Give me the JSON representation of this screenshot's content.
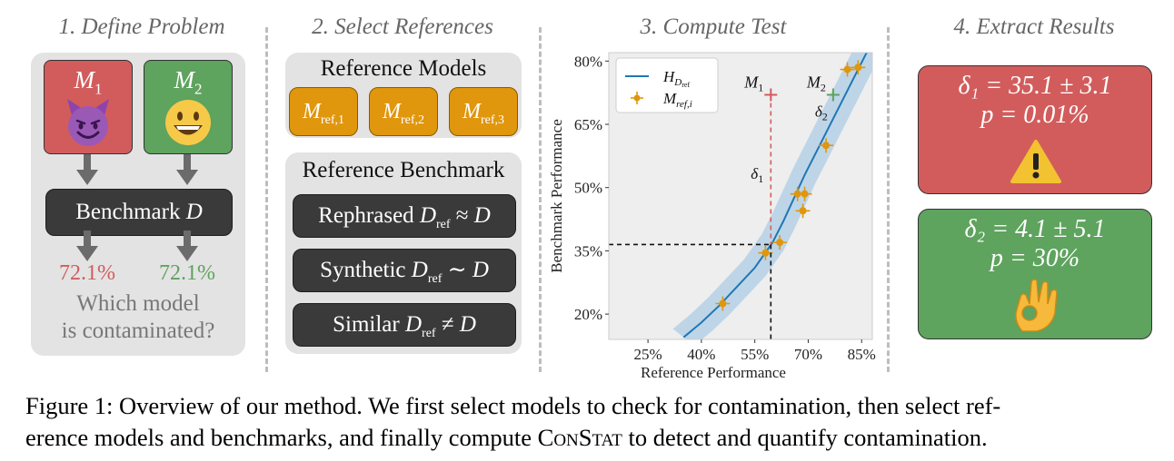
{
  "steps": {
    "step1_title": "1. Define Problem",
    "step2_title": "2. Select References",
    "step3_title": "3. Compute Test",
    "step4_title": "4. Extract Results"
  },
  "problem": {
    "model1_symbol": "M",
    "model1_index": "1",
    "model2_symbol": "M",
    "model2_index": "2",
    "benchmark_text": "Benchmark ",
    "benchmark_symbol": "D",
    "model1_score": "72.1%",
    "model2_score": "72.1%",
    "question_line1": "Which model",
    "question_line2": "is contaminated?",
    "colors": {
      "red": "#d25c5c",
      "green": "#5ea35e",
      "dark": "#3a3a3a"
    }
  },
  "references": {
    "models_title": "Reference Models",
    "ref_models": [
      {
        "symbol": "M",
        "sub": "ref,1"
      },
      {
        "symbol": "M",
        "sub": "ref,2"
      },
      {
        "symbol": "M",
        "sub": "ref,3"
      }
    ],
    "benchmark_title": "Reference Benchmark",
    "benchmarks": [
      {
        "word": "Rephrased",
        "sym": "D",
        "sub": "ref",
        "rel": "≈",
        "target": "D"
      },
      {
        "word": "Synthetic",
        "sym": "D",
        "sub": "ref",
        "rel": "∼",
        "target": "D"
      },
      {
        "word": "Similar",
        "sym": "D",
        "sub": "ref",
        "rel": "≠",
        "target": "D"
      }
    ],
    "orange": "#e0960d"
  },
  "chart_data": {
    "type": "scatter",
    "title": "3. Compute Test",
    "xlabel": "Reference Performance",
    "ylabel": "Benchmark Performance",
    "xlim": [
      14,
      88
    ],
    "ylim": [
      14,
      82
    ],
    "xticks": [
      "25%",
      "40%",
      "55%",
      "70%",
      "85%"
    ],
    "xtick_values": [
      25,
      40,
      55,
      70,
      85
    ],
    "yticks": [
      "80%",
      "65%",
      "50%",
      "35%",
      "20%"
    ],
    "ytick_values": [
      80,
      65,
      50,
      35,
      20
    ],
    "legend": {
      "line_label": "H",
      "line_sub": "D",
      "line_subsub": "ref",
      "points_label": "M",
      "points_sub": "ref,i"
    },
    "fit_curve": {
      "x": [
        35,
        40,
        45,
        50,
        55,
        60,
        63,
        66,
        69,
        72,
        75,
        78,
        81,
        84,
        87
      ],
      "y": [
        14.5,
        18,
        22,
        26.5,
        31,
        37,
        42,
        47.5,
        53,
        58,
        63,
        68,
        73,
        78,
        83
      ]
    },
    "reference_points": [
      {
        "x": 46,
        "y": 22.5
      },
      {
        "x": 58,
        "y": 34.5
      },
      {
        "x": 62,
        "y": 37
      },
      {
        "x": 67,
        "y": 48.5
      },
      {
        "x": 69,
        "y": 48.5
      },
      {
        "x": 68.5,
        "y": 44.5
      },
      {
        "x": 75,
        "y": 60
      },
      {
        "x": 81,
        "y": 78
      },
      {
        "x": 84,
        "y": 78.5
      }
    ],
    "model_points": [
      {
        "label": "M",
        "sub": "1",
        "x": 59.5,
        "y": 72,
        "delta": "δ",
        "delta_sub": "1",
        "color": "#d25c5c"
      },
      {
        "label": "M",
        "sub": "2",
        "x": 77,
        "y": 72,
        "delta": "δ",
        "delta_sub": "2",
        "color": "#5ea35e"
      }
    ],
    "threshold": {
      "x": 59.5,
      "y": 36.5
    },
    "colors": {
      "curve": "#1f77b4",
      "band": "#a9cbe6",
      "points": "#e0960d",
      "bg": "#eeeeee"
    }
  },
  "results": {
    "r1_line1": "δ₁ = 35.1 ± 3.1",
    "r1_line2": "p = 0.01%",
    "r2_line1": "δ₂ = 4.1 ± 5.1",
    "r2_line2": "p = 30%"
  },
  "caption": {
    "prefix": "Figure 1: Overview of our method. We first select models to check for contamination, then select ref-",
    "line2_before": "erence models and benchmarks, and finally compute ",
    "method": "ConStat",
    "line2_after": " to detect and quantify contamination."
  }
}
